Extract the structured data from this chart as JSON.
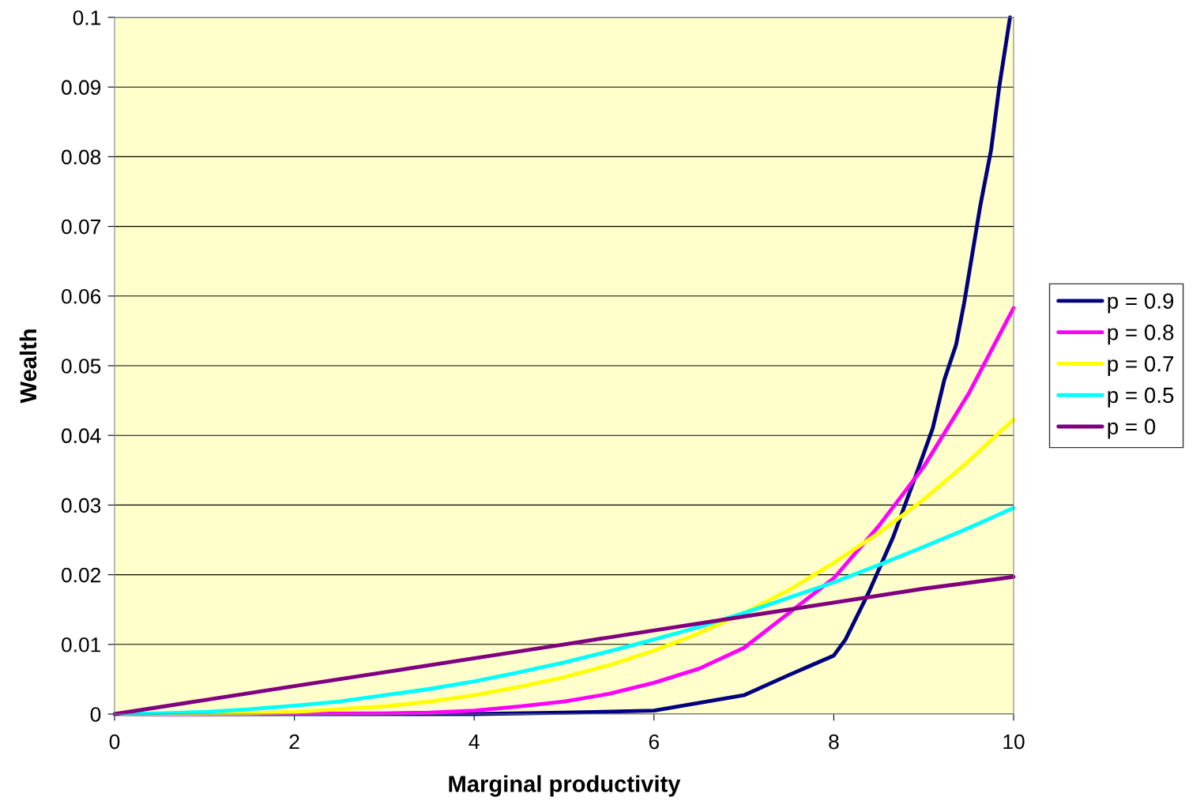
{
  "chart_data": {
    "type": "line",
    "xlabel": "Marginal productivity",
    "ylabel": "Wealth",
    "xlim": [
      0,
      10
    ],
    "ylim": [
      0,
      0.1
    ],
    "xticks": [
      0,
      2,
      4,
      6,
      8,
      10
    ],
    "yticks": [
      0,
      0.01,
      0.02,
      0.03,
      0.04,
      0.05,
      0.06,
      0.07,
      0.08,
      0.09,
      0.1
    ],
    "grid": "y",
    "legend": "right",
    "marker": "none",
    "line_style": "solid",
    "series": [
      {
        "name": "p = 0.9",
        "color": "#000080",
        "x": [
          0,
          4,
          5,
          6,
          6.5,
          7,
          7.5,
          8,
          8.13,
          8.39,
          8.66,
          8.92,
          9.1,
          9.23,
          9.36,
          9.45,
          9.54,
          9.63,
          9.75,
          9.84,
          9.96
        ],
        "values": [
          0,
          0,
          0.0002,
          0.0005,
          0.0016,
          0.0027,
          0.0056,
          0.0084,
          0.0107,
          0.0175,
          0.0254,
          0.0345,
          0.041,
          0.048,
          0.053,
          0.059,
          0.066,
          0.073,
          0.081,
          0.09,
          0.1
        ]
      },
      {
        "name": "p = 0.8",
        "color": "#ff00ff",
        "x": [
          0,
          3,
          3.5,
          4,
          4.5,
          5,
          5.5,
          6,
          6.5,
          7,
          7.5,
          8,
          8.5,
          9,
          9.5,
          10
        ],
        "values": [
          0,
          0.0001,
          0.0002,
          0.0005,
          0.0011,
          0.0018,
          0.0029,
          0.0045,
          0.0065,
          0.0095,
          0.0145,
          0.0195,
          0.027,
          0.0355,
          0.046,
          0.0583
        ]
      },
      {
        "name": "p = 0.7",
        "color": "#ffff00",
        "x": [
          0,
          1.5,
          2,
          2.5,
          3,
          3.5,
          4,
          4.5,
          5,
          5.5,
          6,
          6.5,
          7,
          7.5,
          8,
          8.5,
          9,
          9.5,
          10
        ],
        "values": [
          0,
          0.0001,
          0.0003,
          0.0007,
          0.0011,
          0.0018,
          0.0027,
          0.0039,
          0.0053,
          0.007,
          0.0091,
          0.0116,
          0.0145,
          0.0178,
          0.0217,
          0.026,
          0.0308,
          0.0363,
          0.0423
        ]
      },
      {
        "name": "p = 0.5",
        "color": "#00ffff",
        "x": [
          0,
          0.5,
          1,
          1.5,
          2,
          2.5,
          3,
          3.5,
          4,
          4.5,
          5,
          5.5,
          6,
          6.5,
          7,
          7.5,
          8,
          8.5,
          9,
          9.5,
          10
        ],
        "values": [
          0,
          0.0001,
          0.0003,
          0.0007,
          0.0012,
          0.0018,
          0.0027,
          0.0036,
          0.0047,
          0.006,
          0.0074,
          0.009,
          0.0107,
          0.0125,
          0.0145,
          0.0167,
          0.0189,
          0.0214,
          0.024,
          0.0267,
          0.0296
        ]
      },
      {
        "name": "p = 0",
        "color": "#800080",
        "x": [
          0,
          1,
          2,
          3,
          4,
          5,
          6,
          7,
          8,
          9,
          10
        ],
        "values": [
          0,
          0.002,
          0.004,
          0.006,
          0.008,
          0.01,
          0.012,
          0.014,
          0.016,
          0.018,
          0.0197
        ]
      }
    ]
  }
}
